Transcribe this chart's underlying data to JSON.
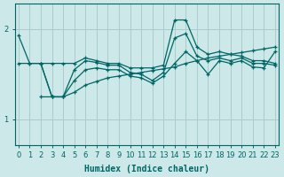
{
  "xlabel": "Humidex (Indice chaleur)",
  "bg_color": "#cce8e8",
  "line_color": "#006666",
  "grid_color": "#aacccc",
  "xlim": [
    -0.3,
    23.3
  ],
  "ylim": [
    0.72,
    2.28
  ],
  "yticks": [
    1,
    2
  ],
  "xticks": [
    0,
    1,
    2,
    3,
    4,
    5,
    6,
    7,
    8,
    9,
    10,
    11,
    12,
    13,
    14,
    15,
    16,
    17,
    18,
    19,
    20,
    21,
    22,
    23
  ],
  "line1_x": [
    0,
    1,
    2,
    3,
    4,
    5,
    6,
    7,
    8,
    9,
    10,
    11,
    12,
    13,
    14,
    15,
    16,
    17,
    18,
    19,
    20,
    21,
    22,
    23
  ],
  "line1_y": [
    1.93,
    1.62,
    1.62,
    1.62,
    1.62,
    1.62,
    1.68,
    1.65,
    1.62,
    1.62,
    1.57,
    1.57,
    1.57,
    1.6,
    2.1,
    2.1,
    1.8,
    1.72,
    1.75,
    1.72,
    1.7,
    1.65,
    1.65,
    1.62
  ],
  "line2_x": [
    0,
    1,
    2,
    3,
    4,
    5,
    6,
    7,
    8,
    9,
    10,
    11,
    12,
    13,
    14,
    15,
    16,
    17,
    18,
    19,
    20,
    21,
    22,
    23
  ],
  "line2_y": [
    1.62,
    1.62,
    1.62,
    1.25,
    1.25,
    1.55,
    1.65,
    1.63,
    1.6,
    1.6,
    1.52,
    1.5,
    1.43,
    1.52,
    1.9,
    1.95,
    1.7,
    1.65,
    1.68,
    1.65,
    1.68,
    1.62,
    1.62,
    1.6
  ],
  "line3_x": [
    2,
    3,
    4,
    5,
    6,
    7,
    8,
    9,
    10,
    11,
    12,
    13,
    14,
    15,
    16,
    17,
    18,
    19,
    20,
    21,
    22,
    23
  ],
  "line3_y": [
    1.62,
    1.25,
    1.25,
    1.43,
    1.55,
    1.57,
    1.55,
    1.55,
    1.48,
    1.46,
    1.4,
    1.48,
    1.62,
    1.75,
    1.65,
    1.5,
    1.65,
    1.62,
    1.65,
    1.58,
    1.57,
    1.75
  ],
  "line4_x": [
    2,
    3,
    4,
    5,
    6,
    7,
    8,
    9,
    10,
    11,
    12,
    13,
    14,
    15,
    16,
    17,
    18,
    19,
    20,
    21,
    22,
    23
  ],
  "line4_y": [
    1.25,
    1.25,
    1.25,
    1.3,
    1.38,
    1.42,
    1.46,
    1.48,
    1.5,
    1.52,
    1.54,
    1.56,
    1.58,
    1.62,
    1.65,
    1.68,
    1.7,
    1.72,
    1.74,
    1.76,
    1.78,
    1.8
  ]
}
